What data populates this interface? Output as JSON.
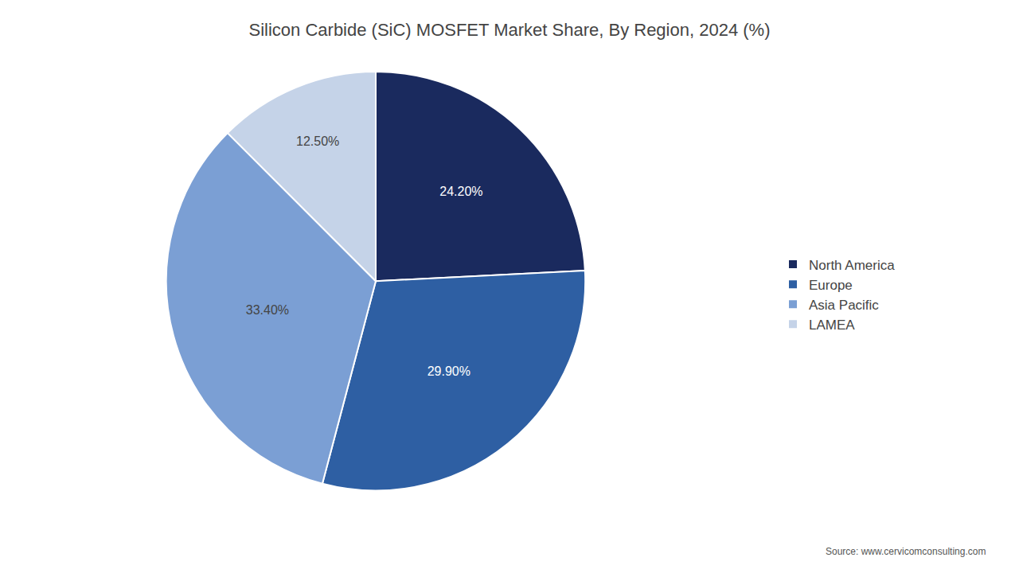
{
  "chart_data": {
    "type": "pie",
    "title": "Silicon Carbide (SiC) MOSFET Market Share, By Region, 2024 (%)",
    "categories": [
      "North America",
      "Europe",
      "Asia Pacific",
      "LAMEA"
    ],
    "values": [
      24.2,
      29.9,
      33.4,
      12.5
    ],
    "value_labels": [
      "24.20%",
      "29.90%",
      "33.40%",
      "12.50%"
    ],
    "colors": [
      "#1a2a5e",
      "#2e5fa3",
      "#7b9fd4",
      "#c5d3e8"
    ],
    "data_labels": true,
    "legend": "right",
    "annotations": [
      "Source: www.cervicomconsulting.com"
    ]
  }
}
